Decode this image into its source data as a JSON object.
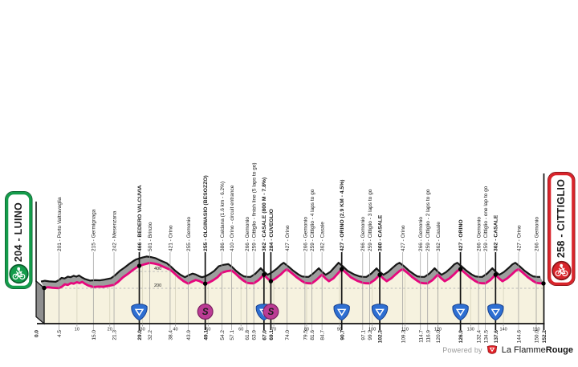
{
  "start_box": {
    "label": "204 - LUINO",
    "color": "#149c4b",
    "ring": "#0b5a2b"
  },
  "finish_box": {
    "label": "258 - CITTIGLIO",
    "color": "#d9242b",
    "ring": "#7e1216"
  },
  "footer": {
    "powered_by": "Powered by",
    "brand_regular": "La Flamme",
    "brand_bold": "Rouge",
    "logo_color": "#e02127"
  },
  "chart_data": {
    "type": "area",
    "title": "",
    "x_unit": "km",
    "y_unit": "m",
    "x_range": [
      0,
      152.2
    ],
    "grid": "dashed-horizontal",
    "elevation_gridlines": [
      {
        "elev": 400,
        "label": "400"
      },
      {
        "elev": 200,
        "label": "200"
      }
    ],
    "decade_ticks": [
      10,
      20,
      30,
      40,
      50,
      60,
      70,
      80,
      90,
      100,
      110,
      120,
      130,
      140,
      150
    ],
    "start": {
      "km": 0.0,
      "elev": 204,
      "km_label": "0.0"
    },
    "finish": {
      "km": 152.2,
      "elev": 258,
      "km_label": "152.2"
    },
    "colors": {
      "line": "#e6077d",
      "terrain": "#9d9d9d",
      "outline": "#161616",
      "plot_bg": "#f6f2df",
      "v_grid": "#d9d6c0",
      "kom": "#2e6fd2",
      "sprint": "#bb3b94"
    },
    "profile": [
      [
        0,
        204
      ],
      [
        1.2,
        213
      ],
      [
        2.5,
        206
      ],
      [
        4.5,
        201
      ],
      [
        5.5,
        222
      ],
      [
        6.3,
        248
      ],
      [
        7.2,
        240
      ],
      [
        8.2,
        262
      ],
      [
        9.0,
        255
      ],
      [
        10.0,
        272
      ],
      [
        10.8,
        262
      ],
      [
        11.6,
        276
      ],
      [
        12.5,
        252
      ],
      [
        13.5,
        232
      ],
      [
        15.0,
        215
      ],
      [
        16.5,
        220
      ],
      [
        18.0,
        218
      ],
      [
        19.5,
        228
      ],
      [
        21.3,
        242
      ],
      [
        22.5,
        275
      ],
      [
        24.0,
        330
      ],
      [
        25.5,
        370
      ],
      [
        27.0,
        415
      ],
      [
        28.2,
        448
      ],
      [
        29.0,
        466
      ],
      [
        30.0,
        478
      ],
      [
        31.0,
        490
      ],
      [
        32.2,
        501
      ],
      [
        33.5,
        494
      ],
      [
        35.0,
        480
      ],
      [
        36.5,
        452
      ],
      [
        38.4,
        421
      ],
      [
        39.5,
        385
      ],
      [
        41.0,
        330
      ],
      [
        42.5,
        285
      ],
      [
        43.9,
        255
      ],
      [
        45.0,
        278
      ],
      [
        46.2,
        298
      ],
      [
        47.2,
        288
      ],
      [
        48.2,
        268
      ],
      [
        49.1,
        255
      ],
      [
        50.2,
        268
      ],
      [
        51.5,
        295
      ],
      [
        52.8,
        330
      ],
      [
        54.2,
        386
      ],
      [
        55.6,
        402
      ],
      [
        57.1,
        410
      ],
      [
        58.2,
        380
      ],
      [
        59.5,
        330
      ],
      [
        60.8,
        290
      ],
      [
        61.8,
        266
      ],
      [
        62.8,
        260
      ],
      [
        63.9,
        259
      ],
      [
        65.3,
        295
      ],
      [
        67.0,
        362
      ],
      [
        68.0,
        320
      ],
      [
        69.1,
        284
      ],
      [
        70.5,
        315
      ],
      [
        72.0,
        360
      ],
      [
        73.2,
        405
      ],
      [
        74.0,
        427
      ],
      [
        75.5,
        380
      ],
      [
        77.0,
        330
      ],
      [
        78.5,
        288
      ],
      [
        79.5,
        266
      ],
      [
        80.5,
        260
      ],
      [
        81.6,
        259
      ],
      [
        83.0,
        300
      ],
      [
        84.7,
        362
      ],
      [
        85.7,
        320
      ],
      [
        86.8,
        284
      ],
      [
        88.2,
        318
      ],
      [
        89.5,
        375
      ],
      [
        90.7,
        427
      ],
      [
        92.0,
        385
      ],
      [
        93.5,
        330
      ],
      [
        95.5,
        288
      ],
      [
        97.1,
        266
      ],
      [
        98.1,
        260
      ],
      [
        99.2,
        259
      ],
      [
        100.7,
        298
      ],
      [
        102.3,
        360
      ],
      [
        103.3,
        318
      ],
      [
        104.4,
        284
      ],
      [
        105.8,
        318
      ],
      [
        107.2,
        368
      ],
      [
        108.4,
        408
      ],
      [
        109.3,
        427
      ],
      [
        110.8,
        382
      ],
      [
        112.3,
        330
      ],
      [
        113.8,
        288
      ],
      [
        114.7,
        266
      ],
      [
        115.8,
        260
      ],
      [
        116.9,
        259
      ],
      [
        118.4,
        298
      ],
      [
        120.0,
        362
      ],
      [
        121.0,
        320
      ],
      [
        122.1,
        284
      ],
      [
        123.5,
        316
      ],
      [
        125.0,
        368
      ],
      [
        126.0,
        408
      ],
      [
        126.9,
        427
      ],
      [
        128.3,
        382
      ],
      [
        129.8,
        330
      ],
      [
        131.3,
        288
      ],
      [
        132.4,
        266
      ],
      [
        133.4,
        260
      ],
      [
        134.5,
        259
      ],
      [
        136.0,
        298
      ],
      [
        137.6,
        362
      ],
      [
        138.6,
        320
      ],
      [
        139.7,
        284
      ],
      [
        141.1,
        316
      ],
      [
        142.6,
        368
      ],
      [
        143.7,
        408
      ],
      [
        144.6,
        427
      ],
      [
        146.0,
        382
      ],
      [
        147.5,
        330
      ],
      [
        149.0,
        288
      ],
      [
        150.0,
        266
      ],
      [
        151.0,
        260
      ],
      [
        152.2,
        258
      ]
    ],
    "waypoints": [
      {
        "km": 4.5,
        "elev": 201,
        "label": "201 - Porto Valtravaglia",
        "bold": false,
        "icon": null,
        "km_label": "4.5"
      },
      {
        "km": 15.0,
        "elev": 215,
        "label": "215 - Germignaga",
        "bold": false,
        "icon": null,
        "km_label": "15.0"
      },
      {
        "km": 21.3,
        "elev": 242,
        "label": "242 - Mesenzana",
        "bold": false,
        "icon": null,
        "km_label": "21.3"
      },
      {
        "km": 29.0,
        "elev": 466,
        "label": "466 - BEDERO VALCUVIA",
        "bold": true,
        "icon": "kom",
        "km_label": "29.0"
      },
      {
        "km": 32.2,
        "elev": 501,
        "label": "501 - Brinzio",
        "bold": false,
        "icon": null,
        "km_label": "32.2"
      },
      {
        "km": 38.4,
        "elev": 421,
        "label": "421 - Orino",
        "bold": false,
        "icon": null,
        "km_label": "38.4"
      },
      {
        "km": 43.9,
        "elev": 255,
        "label": "255 - Gemonio",
        "bold": false,
        "icon": null,
        "km_label": "43.9"
      },
      {
        "km": 49.1,
        "elev": 255,
        "label": "255 - OLGINASIO (BESOZZO)",
        "bold": true,
        "icon": "sprint",
        "km_label": "49.1"
      },
      {
        "km": 54.2,
        "elev": 386,
        "label": "386 - Caldana (1.6 km - 6.2%)",
        "bold": false,
        "icon": null,
        "km_label": "54.2"
      },
      {
        "km": 57.1,
        "elev": 410,
        "label": "410 - Orino - circuit entrance",
        "bold": false,
        "icon": null,
        "km_label": "57.1"
      },
      {
        "km": 61.8,
        "elev": 266,
        "label": "266 - Gemonio",
        "bold": false,
        "icon": null,
        "km_label": "61.8"
      },
      {
        "km": 63.9,
        "elev": 259,
        "label": "259 - Cittiglio - finish line (5 laps to go)",
        "bold": false,
        "icon": null,
        "km_label": "63.9"
      },
      {
        "km": 67.0,
        "elev": 362,
        "label": "362 - CASALE (800 M - 7.8%)",
        "bold": true,
        "icon": "kom",
        "km_label": "67.0"
      },
      {
        "km": 69.1,
        "elev": 284,
        "label": "284 - CUVEGLIO",
        "bold": true,
        "icon": "sprint",
        "km_label": "69.1"
      },
      {
        "km": 74.0,
        "elev": 427,
        "label": "427 - Orino",
        "bold": false,
        "icon": null,
        "km_label": "74.0"
      },
      {
        "km": 79.5,
        "elev": 266,
        "label": "266 - Gemonio",
        "bold": false,
        "icon": null,
        "km_label": "79.5"
      },
      {
        "km": 81.6,
        "elev": 259,
        "label": "259 - Cittiglio - 4 laps to go",
        "bold": false,
        "icon": null,
        "km_label": "81.6"
      },
      {
        "km": 84.7,
        "elev": 362,
        "label": "362 - Casale",
        "bold": false,
        "icon": null,
        "km_label": "84.7"
      },
      {
        "km": 90.7,
        "elev": 427,
        "label": "427 - ORINO (2.9 KM - 4.5%)",
        "bold": true,
        "icon": "kom",
        "km_label": "90.7"
      },
      {
        "km": 97.1,
        "elev": 266,
        "label": "266 - Gemonio",
        "bold": false,
        "icon": null,
        "km_label": "97.1"
      },
      {
        "km": 99.2,
        "elev": 259,
        "label": "259 - Cittiglio - 3 laps to go",
        "bold": false,
        "icon": null,
        "km_label": "99.2"
      },
      {
        "km": 102.3,
        "elev": 360,
        "label": "360 - CASALE",
        "bold": true,
        "icon": "kom",
        "km_label": "102.3"
      },
      {
        "km": 109.3,
        "elev": 427,
        "label": "427 - Orino",
        "bold": false,
        "icon": null,
        "km_label": "109.3"
      },
      {
        "km": 114.7,
        "elev": 266,
        "label": "266 - Gemonio",
        "bold": false,
        "icon": null,
        "km_label": "114.7"
      },
      {
        "km": 116.9,
        "elev": 259,
        "label": "259 - Cittiglio - 2 laps to go",
        "bold": false,
        "icon": null,
        "km_label": "116.9"
      },
      {
        "km": 120.0,
        "elev": 362,
        "label": "362 - Casale",
        "bold": false,
        "icon": null,
        "km_label": "120.0"
      },
      {
        "km": 126.9,
        "elev": 427,
        "label": "427 - ORINO",
        "bold": true,
        "icon": "kom",
        "km_label": "126.9"
      },
      {
        "km": 132.4,
        "elev": 266,
        "label": "266 - Gemonio",
        "bold": false,
        "icon": null,
        "km_label": "132.4"
      },
      {
        "km": 134.5,
        "elev": 259,
        "label": "259 - Cittiglio - one lap to go",
        "bold": false,
        "icon": null,
        "km_label": "134.5"
      },
      {
        "km": 137.6,
        "elev": 362,
        "label": "362 - CASALE",
        "bold": true,
        "icon": "kom",
        "km_label": "137.6"
      },
      {
        "km": 144.6,
        "elev": 427,
        "label": "427 - Orino",
        "bold": false,
        "icon": null,
        "km_label": "144.6"
      },
      {
        "km": 150.0,
        "elev": 266,
        "label": "266 - Gemonio",
        "bold": false,
        "icon": null,
        "km_label": "150.0"
      }
    ]
  }
}
